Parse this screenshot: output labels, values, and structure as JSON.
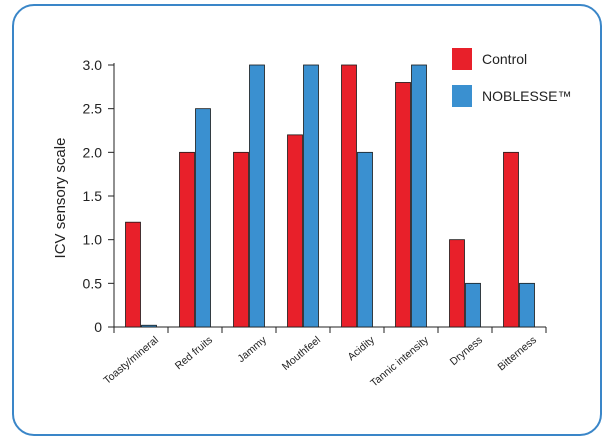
{
  "chart_data": {
    "type": "bar",
    "categories": [
      "Toasty/mineral",
      "Red fruits",
      "Jammy",
      "Mouthfeel",
      "Acidity",
      "Tannic intensity",
      "Dryness",
      "Bitterness"
    ],
    "series": [
      {
        "name": "Control",
        "color": "#e8202a",
        "values": [
          1.2,
          2.0,
          2.0,
          2.2,
          3.0,
          2.8,
          1.0,
          2.0
        ]
      },
      {
        "name": "NOBLESSE™",
        "color": "#3a90d0",
        "values": [
          0.02,
          2.5,
          3.0,
          3.0,
          2.0,
          3.0,
          0.5,
          0.5
        ]
      }
    ],
    "ylabel": "ICV sensory scale",
    "xlabel": "",
    "title": "",
    "ylim": [
      0,
      3.0
    ],
    "yticks": [
      "0",
      "0.5",
      "1.0",
      "1.5",
      "2.0",
      "2.5",
      "3.0"
    ],
    "legend_position": "top-right",
    "grid": false
  }
}
